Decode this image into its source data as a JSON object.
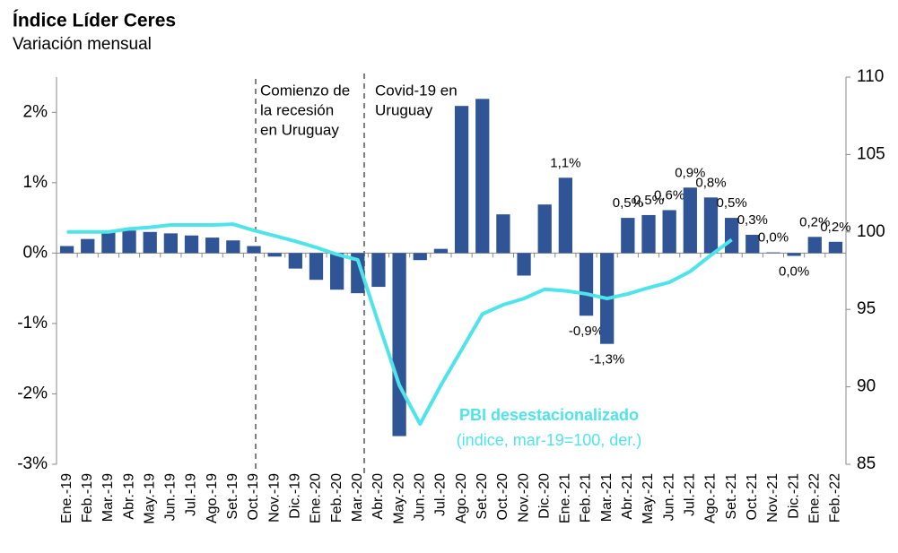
{
  "chart_data": {
    "type": "bar_line",
    "title": "Índice Líder Ceres",
    "subtitle": "Variación mensual",
    "categories": [
      "Ene.-19",
      "Feb.-19",
      "Mar.-19",
      "Abr.-19",
      "May.-19",
      "Jun.-19",
      "Jul.-19",
      "Ago.-19",
      "Set.-19",
      "Oct.-19",
      "Nov.-19",
      "Dic.-19",
      "Ene.-20",
      "Feb.-20",
      "Mar.-20",
      "Abr.-20",
      "May.-20",
      "Jun.-20",
      "Jul.-20",
      "Ago.-20",
      "Set.-20",
      "Oct.-20",
      "Nov.-20",
      "Dic.-20",
      "Ene.-21",
      "Feb.-21",
      "Mar.-21",
      "Abr.-21",
      "May.-21",
      "Jun.-21",
      "Jul.-21",
      "Ago.-21",
      "Set.-21",
      "Oct.-21",
      "Nov.-21",
      "Dic.-21",
      "Ene.-22",
      "Feb.-22"
    ],
    "series": [
      {
        "type": "bar",
        "color": "#2f5597",
        "values": [
          0.1,
          0.2,
          0.3,
          0.32,
          0.3,
          0.28,
          0.25,
          0.22,
          0.18,
          0.1,
          -0.05,
          -0.22,
          -0.38,
          -0.52,
          -0.57,
          -0.48,
          -2.6,
          -0.1,
          0.06,
          2.09,
          2.19,
          0.55,
          -0.32,
          0.69,
          1.07,
          -0.89,
          -1.29,
          0.5,
          0.54,
          0.61,
          0.93,
          0.79,
          0.5,
          0.26,
          0.01,
          -0.04,
          0.23,
          0.16
        ],
        "value_labels": [
          null,
          null,
          null,
          null,
          null,
          null,
          null,
          null,
          null,
          null,
          null,
          null,
          null,
          null,
          null,
          null,
          null,
          null,
          null,
          null,
          null,
          null,
          null,
          null,
          "1,1%",
          "-0,9%",
          "-1,3%",
          "0,5%",
          "0,5%",
          "0,6%",
          "0,9%",
          "0,8%",
          "0,5%",
          "0,3%",
          "0,0%",
          "0,0%",
          "0,2%",
          "0,2%"
        ]
      },
      {
        "type": "line",
        "axis": "y2",
        "color": "#4fe3ea",
        "name": "PBI desestacionalizado",
        "note": "(indice, mar-19=100, der.)",
        "values": [
          100,
          100,
          100,
          100.2,
          100.3,
          100.45,
          100.45,
          100.45,
          100.5,
          100.1,
          99.75,
          99.4,
          99.0,
          98.55,
          98.2,
          94.1,
          90.1,
          87.6,
          90.1,
          92.4,
          94.7,
          95.3,
          95.7,
          96.3,
          96.2,
          96.0,
          95.7,
          96.0,
          96.4,
          96.75,
          97.45,
          98.5,
          99.5,
          null,
          null,
          null,
          null,
          null
        ]
      }
    ],
    "ylim": [
      -3,
      2.5
    ],
    "yticks": [
      {
        "value": -3,
        "label": "-3%"
      },
      {
        "value": -2,
        "label": "-2%"
      },
      {
        "value": -1,
        "label": "-1%"
      },
      {
        "value": 0,
        "label": "0%"
      },
      {
        "value": 1,
        "label": "1%"
      },
      {
        "value": 2,
        "label": "2%"
      }
    ],
    "y2lim": [
      85,
      110
    ],
    "y2ticks": [
      85,
      90,
      95,
      100,
      105,
      110
    ],
    "annotations": [
      {
        "lines": [
          "Comienzo de",
          "la recesión",
          "en Uruguay"
        ]
      },
      {
        "lines": [
          "Covid-19 en",
          "Uruguay"
        ]
      }
    ]
  }
}
